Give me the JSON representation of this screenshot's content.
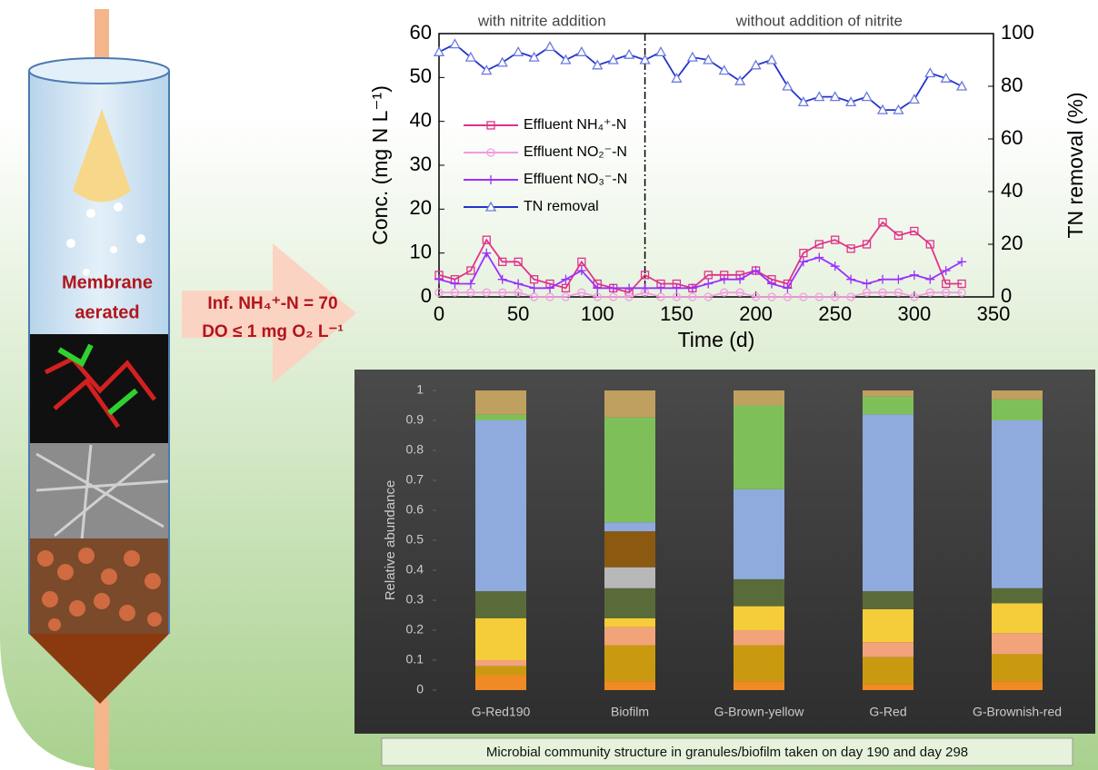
{
  "labels": {
    "reactor": [
      "Membrane",
      "aerated"
    ],
    "influent": [
      "Inf. NH₄⁺-N = 70",
      "DO ≤ 1 mg O₂ L⁻¹"
    ]
  },
  "chart_data": [
    {
      "type": "line",
      "xlabel": "Time (d)",
      "ylabel": "Conc. (mg N L⁻¹)",
      "y2label": "TN removal (%)",
      "annotations": [
        "with nitrite addition",
        "without addition of nitrite"
      ],
      "divider_x": 130,
      "x": [
        0,
        10,
        20,
        30,
        40,
        50,
        60,
        70,
        80,
        90,
        100,
        110,
        120,
        130,
        140,
        150,
        160,
        170,
        180,
        190,
        200,
        210,
        220,
        230,
        240,
        250,
        260,
        270,
        280,
        290,
        300,
        310,
        320,
        330
      ],
      "series": [
        {
          "name": "Effluent NH₄⁺-N",
          "color": "#e0338a",
          "marker": "square",
          "values": [
            5,
            4,
            6,
            13,
            8,
            8,
            4,
            3,
            2,
            8,
            3,
            2,
            1,
            5,
            3,
            3,
            2,
            5,
            5,
            5,
            6,
            4,
            3,
            10,
            12,
            13,
            11,
            12,
            17,
            14,
            15,
            12,
            3,
            3
          ]
        },
        {
          "name": "Effluent NO₂⁻-N",
          "color": "#f29ce0",
          "marker": "circle",
          "values": [
            1,
            1,
            1,
            1,
            1,
            1,
            0,
            0,
            0,
            1,
            0,
            0,
            0,
            1,
            0,
            0,
            0,
            0,
            1,
            1,
            0,
            0,
            0,
            0,
            0,
            0,
            0,
            1,
            1,
            1,
            0,
            1,
            1,
            1
          ]
        },
        {
          "name": "Effluent NO₃⁻-N",
          "color": "#9b30ff",
          "marker": "plus",
          "values": [
            4,
            3,
            3,
            10,
            4,
            3,
            2,
            2,
            4,
            6,
            2,
            2,
            2,
            2,
            2,
            2,
            2,
            3,
            4,
            4,
            6,
            3,
            2,
            8,
            9,
            7,
            4,
            3,
            4,
            4,
            5,
            4,
            6,
            8
          ]
        },
        {
          "name": "TN removal",
          "color": "#2233cc",
          "marker": "triangle",
          "axis": "y2",
          "values": [
            93,
            96,
            91,
            86,
            89,
            93,
            91,
            95,
            90,
            93,
            88,
            90,
            92,
            90,
            93,
            83,
            91,
            90,
            86,
            82,
            88,
            90,
            80,
            74,
            76,
            76,
            74,
            76,
            71,
            71,
            75,
            85,
            83,
            80
          ]
        }
      ],
      "xlim": [
        0,
        350
      ],
      "xticks": [
        0,
        50,
        100,
        150,
        200,
        250,
        300,
        350
      ],
      "ylim": [
        0,
        60
      ],
      "yticks": [
        0,
        10,
        20,
        30,
        40,
        50,
        60
      ],
      "y2lim": [
        0,
        100
      ],
      "y2ticks": [
        0,
        20,
        40,
        60,
        80,
        100
      ]
    },
    {
      "type": "stacked_bar",
      "ylabel": "Relative abundance",
      "caption": "Microbial community structure in granules/biofilm taken on day 190 and day 298",
      "categories": [
        "G-Red190",
        "Biofilm",
        "G-Brown-yellow",
        "G-Red",
        "G-Brownish-red"
      ],
      "series": [
        {
          "color": "#f08a24",
          "values": [
            0.05,
            0.03,
            0.03,
            0.02,
            0.03
          ]
        },
        {
          "color": "#c99a10",
          "values": [
            0.03,
            0.12,
            0.12,
            0.09,
            0.09
          ]
        },
        {
          "color": "#f2a37a",
          "values": [
            0.02,
            0.06,
            0.05,
            0.05,
            0.07
          ]
        },
        {
          "color": "#f5cc3a",
          "values": [
            0.14,
            0.03,
            0.08,
            0.11,
            0.1
          ]
        },
        {
          "color": "#5a6b3a",
          "values": [
            0.09,
            0.1,
            0.09,
            0.06,
            0.05
          ]
        },
        {
          "color": "#b8b8b8",
          "values": [
            0,
            0.07,
            0,
            0,
            0
          ]
        },
        {
          "color": "#8b5a10",
          "values": [
            0,
            0.12,
            0,
            0,
            0
          ]
        },
        {
          "color": "#8faadc",
          "values": [
            0.57,
            0.03,
            0.3,
            0.59,
            0.56
          ]
        },
        {
          "color": "#7fbf5a",
          "values": [
            0.02,
            0.35,
            0.28,
            0.06,
            0.07
          ]
        },
        {
          "color": "#c0a060",
          "values": [
            0.08,
            0.09,
            0.05,
            0.02,
            0.03
          ]
        }
      ],
      "ylim": [
        0,
        1
      ],
      "yticks": [
        0,
        0.1,
        0.2,
        0.3,
        0.4,
        0.5,
        0.6,
        0.7,
        0.8,
        0.9,
        1
      ]
    }
  ]
}
